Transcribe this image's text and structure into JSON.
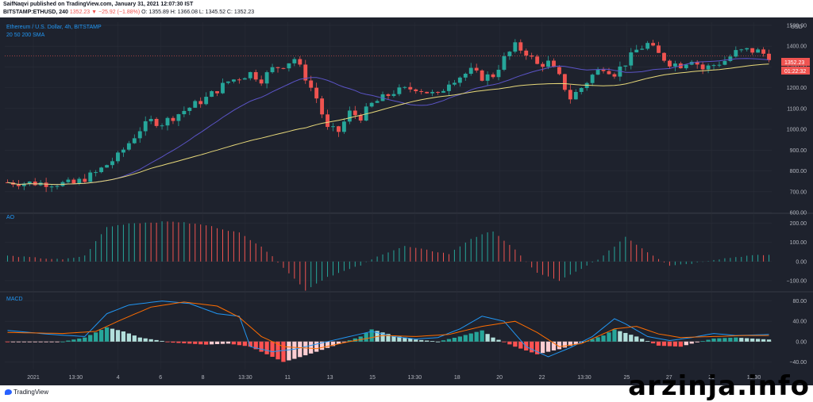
{
  "header": {
    "line1": "SaifNaqvi published on TradingView.com, January 31, 2021 12:07:30 IST",
    "symbol": "BITSTAMP:ETHUSD, 240",
    "change": "1352.23 ▼ −25.92 (−1.88%)",
    "ohlc": "O: 1355.89 H: 1366.08 L: 1345.52 C: 1352.23"
  },
  "main_pane": {
    "title": "Ethereum / U.S. Dollar, 4h, BITSTAMP",
    "indicator": "20 50 200 SMA",
    "currency": "USD",
    "price_badge": "1352.23",
    "countdown_badge": "01:22:32"
  },
  "ao_pane": {
    "label": "AO"
  },
  "macd_pane": {
    "label": "MACD"
  },
  "footer": {
    "logo_text": "TradingView",
    "watermark": "arzinja.info"
  },
  "colors": {
    "background": "#1e222d",
    "bull": "#26a69a",
    "bear": "#ef5350",
    "sma20": "#5b54c7",
    "sma50": "#e8d97a",
    "macd": "#2196f3",
    "signal": "#ff6d00",
    "grid": "#2a2e39",
    "axis_text": "#b2b5be"
  },
  "chart_data": [
    {
      "type": "candlestick",
      "title": "Ethereum / U.S. Dollar, 4h, BITSTAMP",
      "ylabel": "USD",
      "ylim": [
        600,
        1500
      ],
      "yticks": [
        "1500.00",
        "1400.00",
        "1300.00",
        "1200.00",
        "1100.00",
        "1000.00",
        "900.00",
        "800.00",
        "700.00",
        "600.00"
      ],
      "xticks": [
        "2021",
        "13:30",
        "4",
        "6",
        "8",
        "13:30",
        "11",
        "13",
        "15",
        "13:30",
        "18",
        "20",
        "22",
        "13:30",
        "25",
        "27",
        "29",
        "13:30"
      ],
      "last_price": 1352.23,
      "close_path": [
        [
          0,
          745
        ],
        [
          8,
          740
        ],
        [
          12,
          738
        ],
        [
          16,
          790
        ],
        [
          20,
          870
        ],
        [
          24,
          1000
        ],
        [
          26,
          1040
        ],
        [
          28,
          1030
        ],
        [
          32,
          1090
        ],
        [
          36,
          1150
        ],
        [
          40,
          1230
        ],
        [
          44,
          1270
        ],
        [
          46,
          1240
        ],
        [
          48,
          1290
        ],
        [
          50,
          1310
        ],
        [
          52,
          1340
        ],
        [
          54,
          1250
        ],
        [
          56,
          1150
        ],
        [
          58,
          1000
        ],
        [
          60,
          990
        ],
        [
          62,
          1080
        ],
        [
          64,
          1060
        ],
        [
          66,
          1120
        ],
        [
          70,
          1180
        ],
        [
          74,
          1200
        ],
        [
          78,
          1160
        ],
        [
          80,
          1230
        ],
        [
          84,
          1280
        ],
        [
          86,
          1250
        ],
        [
          88,
          1260
        ],
        [
          90,
          1340
        ],
        [
          92,
          1400
        ],
        [
          94,
          1370
        ],
        [
          96,
          1310
        ],
        [
          98,
          1320
        ],
        [
          100,
          1250
        ],
        [
          102,
          1150
        ],
        [
          104,
          1200
        ],
        [
          106,
          1260
        ],
        [
          108,
          1300
        ],
        [
          110,
          1270
        ],
        [
          112,
          1320
        ],
        [
          114,
          1380
        ],
        [
          116,
          1410
        ],
        [
          118,
          1360
        ],
        [
          120,
          1320
        ],
        [
          122,
          1310
        ],
        [
          124,
          1340
        ],
        [
          126,
          1290
        ],
        [
          128,
          1310
        ],
        [
          130,
          1330
        ],
        [
          132,
          1370
        ],
        [
          134,
          1380
        ],
        [
          136,
          1375
        ],
        [
          138,
          1352
        ]
      ],
      "n_candles": 139,
      "series": [
        {
          "name": "SMA 20"
        },
        {
          "name": "SMA 50"
        }
      ]
    },
    {
      "type": "bar",
      "title": "AO",
      "ylim": [
        -100,
        200
      ],
      "yticks": [
        "200.00",
        "100.00",
        "0.00",
        "−100.00"
      ],
      "path": [
        [
          0,
          30
        ],
        [
          10,
          10
        ],
        [
          14,
          30
        ],
        [
          18,
          180
        ],
        [
          22,
          200
        ],
        [
          30,
          210
        ],
        [
          36,
          190
        ],
        [
          42,
          150
        ],
        [
          46,
          80
        ],
        [
          50,
          -30
        ],
        [
          54,
          -150
        ],
        [
          58,
          -80
        ],
        [
          64,
          -20
        ],
        [
          68,
          40
        ],
        [
          72,
          80
        ],
        [
          76,
          60
        ],
        [
          80,
          40
        ],
        [
          84,
          120
        ],
        [
          88,
          160
        ],
        [
          92,
          60
        ],
        [
          96,
          -60
        ],
        [
          100,
          -100
        ],
        [
          104,
          -40
        ],
        [
          108,
          30
        ],
        [
          112,
          130
        ],
        [
          116,
          50
        ],
        [
          120,
          -20
        ],
        [
          124,
          -10
        ],
        [
          128,
          10
        ],
        [
          134,
          30
        ],
        [
          138,
          35
        ]
      ]
    },
    {
      "type": "bar",
      "title": "MACD",
      "ylim": [
        -40,
        80
      ],
      "yticks": [
        "80.00",
        "40.00",
        "0.00",
        "−40.00"
      ],
      "hist_path": [
        [
          0,
          -1
        ],
        [
          10,
          0
        ],
        [
          14,
          8
        ],
        [
          18,
          28
        ],
        [
          21,
          20
        ],
        [
          24,
          8
        ],
        [
          30,
          -2
        ],
        [
          36,
          -6
        ],
        [
          40,
          -4
        ],
        [
          44,
          -10
        ],
        [
          48,
          -30
        ],
        [
          50,
          -40
        ],
        [
          52,
          -34
        ],
        [
          56,
          -20
        ],
        [
          60,
          -5
        ],
        [
          64,
          10
        ],
        [
          66,
          24
        ],
        [
          70,
          12
        ],
        [
          74,
          4
        ],
        [
          78,
          0
        ],
        [
          82,
          10
        ],
        [
          86,
          22
        ],
        [
          88,
          8
        ],
        [
          92,
          -10
        ],
        [
          96,
          -25
        ],
        [
          100,
          -15
        ],
        [
          104,
          -2
        ],
        [
          108,
          12
        ],
        [
          110,
          24
        ],
        [
          114,
          10
        ],
        [
          118,
          -8
        ],
        [
          122,
          -10
        ],
        [
          124,
          -4
        ],
        [
          128,
          6
        ],
        [
          132,
          8
        ],
        [
          138,
          4
        ]
      ],
      "macd_path": [
        [
          0,
          22
        ],
        [
          8,
          14
        ],
        [
          14,
          10
        ],
        [
          18,
          55
        ],
        [
          22,
          72
        ],
        [
          28,
          80
        ],
        [
          33,
          75
        ],
        [
          38,
          55
        ],
        [
          42,
          50
        ],
        [
          44,
          -10
        ],
        [
          48,
          -20
        ],
        [
          52,
          -15
        ],
        [
          56,
          -5
        ],
        [
          62,
          10
        ],
        [
          66,
          20
        ],
        [
          70,
          10
        ],
        [
          74,
          5
        ],
        [
          78,
          8
        ],
        [
          82,
          25
        ],
        [
          86,
          50
        ],
        [
          90,
          40
        ],
        [
          94,
          -10
        ],
        [
          98,
          -30
        ],
        [
          102,
          -12
        ],
        [
          106,
          10
        ],
        [
          110,
          45
        ],
        [
          112,
          35
        ],
        [
          116,
          10
        ],
        [
          120,
          2
        ],
        [
          124,
          8
        ],
        [
          128,
          16
        ],
        [
          132,
          12
        ],
        [
          138,
          14
        ]
      ],
      "signal_path": [
        [
          0,
          18
        ],
        [
          10,
          16
        ],
        [
          16,
          20
        ],
        [
          20,
          40
        ],
        [
          26,
          68
        ],
        [
          32,
          78
        ],
        [
          38,
          70
        ],
        [
          42,
          48
        ],
        [
          46,
          10
        ],
        [
          50,
          -10
        ],
        [
          56,
          -14
        ],
        [
          62,
          0
        ],
        [
          68,
          12
        ],
        [
          74,
          10
        ],
        [
          80,
          14
        ],
        [
          86,
          30
        ],
        [
          92,
          40
        ],
        [
          96,
          18
        ],
        [
          100,
          -10
        ],
        [
          104,
          -4
        ],
        [
          110,
          25
        ],
        [
          114,
          30
        ],
        [
          118,
          15
        ],
        [
          122,
          8
        ],
        [
          128,
          10
        ],
        [
          134,
          12
        ],
        [
          138,
          12
        ]
      ],
      "series": [
        {
          "name": "MACD"
        },
        {
          "name": "Signal"
        }
      ]
    }
  ]
}
